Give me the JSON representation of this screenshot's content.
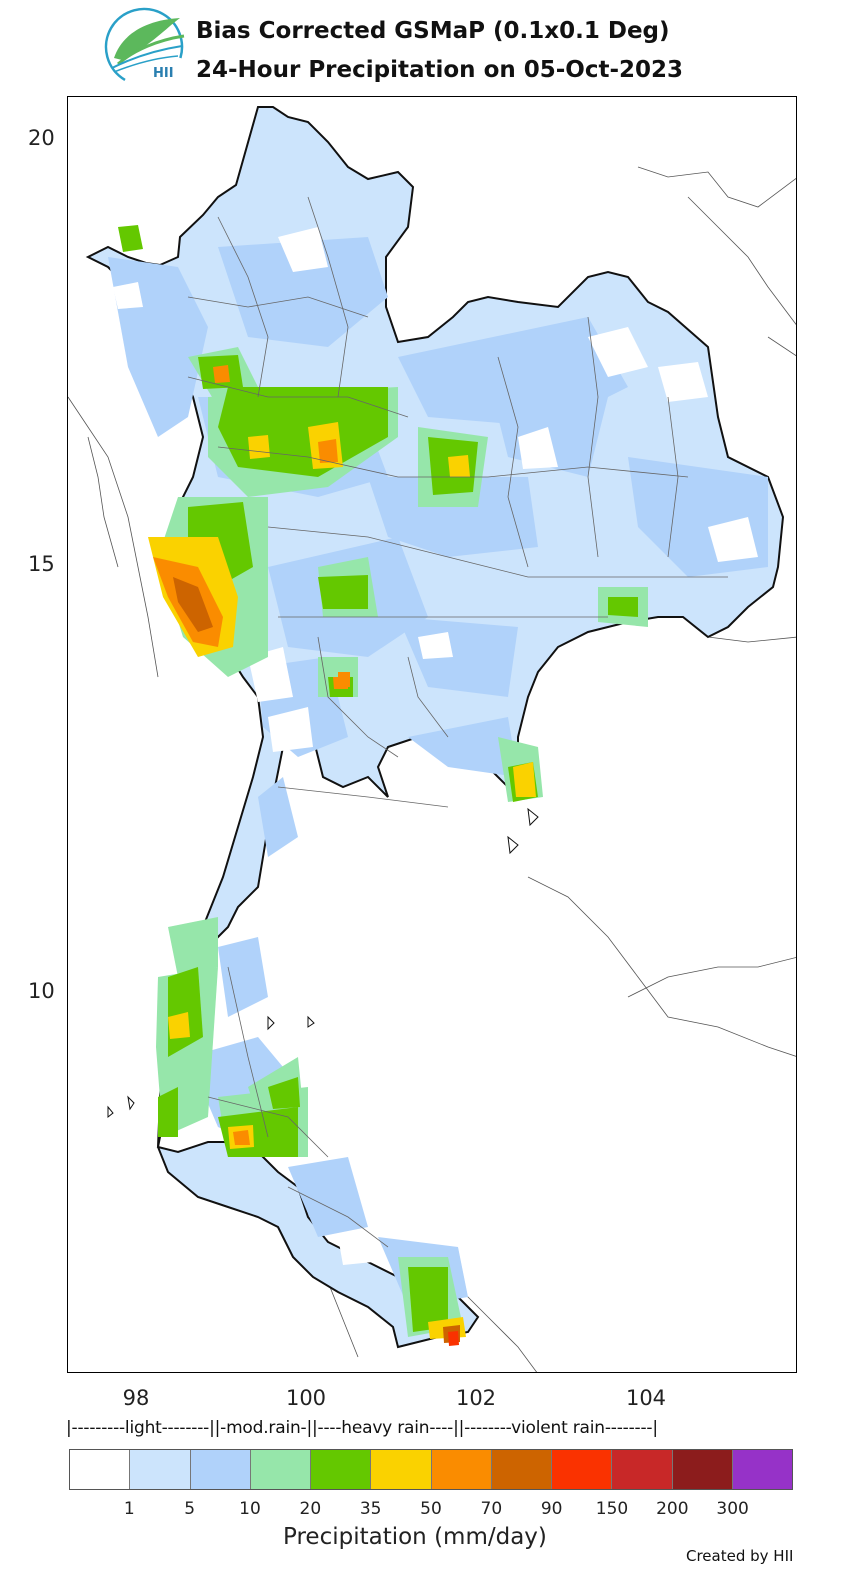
{
  "header": {
    "title_line1": "Bias Corrected GSMaP (0.1x0.1 Deg)",
    "title_line2": "24-Hour Precipitation on 05-Oct-2023",
    "logo_text": "HII",
    "logo_icon": "hii-leaf-logo-icon"
  },
  "map": {
    "latitude_ticks": [
      "20",
      "15",
      "10"
    ],
    "longitude_ticks": [
      "98",
      "100",
      "102",
      "104"
    ],
    "lat_range": [
      5.4,
      20.5
    ],
    "lon_range": [
      97.2,
      105.8
    ]
  },
  "legend": {
    "category_line": "|---------light--------||-mod.rain-||----heavy rain----||--------violent rain--------|",
    "colors": [
      "#ffffff",
      "#cce4fc",
      "#b0d2fa",
      "#96e6aa",
      "#64c800",
      "#fad200",
      "#fa8c00",
      "#cd6400",
      "#fa3200",
      "#c82828",
      "#8c1c1c",
      "#9632c8"
    ],
    "labels": [
      "1",
      "5",
      "10",
      "20",
      "35",
      "50",
      "70",
      "90",
      "150",
      "200",
      "300"
    ],
    "title": "Precipitation (mm/day)"
  },
  "footer": {
    "credit": "Created by HII"
  }
}
